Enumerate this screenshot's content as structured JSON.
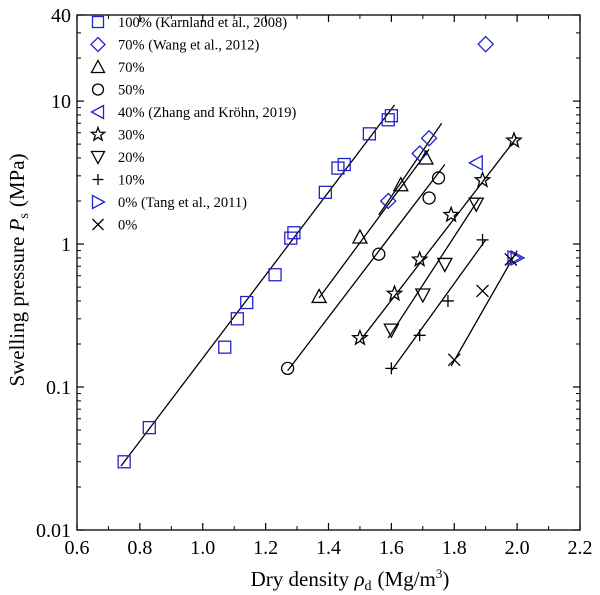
{
  "chart_data": {
    "type": "scatter",
    "xlabel_main": "Dry density ",
    "xlabel_symbol": "ρ",
    "xlabel_sub": "d",
    "xlabel_units": "(Mg/m",
    "xlabel_units_sup": "3",
    "xlabel_units_close": ")",
    "ylabel_main": "Swelling pressure ",
    "ylabel_symbol": "P",
    "ylabel_sub": "s",
    "ylabel_units": "(MPa)",
    "xlim": [
      0.6,
      2.2
    ],
    "ylim": [
      0.01,
      40
    ],
    "yscale": "log",
    "xticks": [
      0.6,
      0.8,
      1.0,
      1.2,
      1.4,
      1.6,
      1.8,
      2.0,
      2.2
    ],
    "xtick_labels": [
      "0.6",
      "0.8",
      "1.0",
      "1.2",
      "1.4",
      "1.6",
      "1.8",
      "2.0",
      "2.2"
    ],
    "yticks": [
      0.01,
      0.1,
      1,
      10,
      40
    ],
    "ytick_labels": [
      "0.01",
      "0.1",
      "1",
      "10",
      "40"
    ],
    "legend_position": "top-left",
    "series": [
      {
        "name": "100% (Karnland et al., 2008)",
        "marker": "square",
        "color": "#2222cc",
        "points": [
          [
            0.75,
            0.03
          ],
          [
            0.83,
            0.052
          ],
          [
            1.07,
            0.19
          ],
          [
            1.11,
            0.3
          ],
          [
            1.14,
            0.39
          ],
          [
            1.23,
            0.61
          ],
          [
            1.28,
            1.1
          ],
          [
            1.29,
            1.2
          ],
          [
            1.39,
            2.3
          ],
          [
            1.43,
            3.4
          ],
          [
            1.45,
            3.6
          ],
          [
            1.53,
            5.9
          ],
          [
            1.59,
            7.4
          ],
          [
            1.6,
            7.9
          ]
        ],
        "fit": [
          [
            0.74,
            0.028
          ],
          [
            1.61,
            9.4
          ]
        ]
      },
      {
        "name": "70% (Wang et al., 2012)",
        "marker": "diamond",
        "color": "#2222cc",
        "points": [
          [
            1.59,
            2.0
          ],
          [
            1.69,
            4.3
          ],
          [
            1.72,
            5.5
          ],
          [
            1.9,
            25.0
          ]
        ],
        "fit": [
          [
            1.56,
            1.6
          ],
          [
            1.76,
            7.0
          ]
        ]
      },
      {
        "name": "70%",
        "marker": "triangle-up",
        "color": "#000000",
        "points": [
          [
            1.37,
            0.43
          ],
          [
            1.5,
            1.12
          ],
          [
            1.63,
            2.6
          ],
          [
            1.71,
            4.0
          ]
        ],
        "fit": [
          [
            1.37,
            0.42
          ],
          [
            1.72,
            4.6
          ]
        ]
      },
      {
        "name": "50%",
        "marker": "circle",
        "color": "#000000",
        "points": [
          [
            1.27,
            0.135
          ],
          [
            1.56,
            0.85
          ],
          [
            1.72,
            2.1
          ],
          [
            1.75,
            2.9
          ]
        ],
        "fit": [
          [
            1.27,
            0.13
          ],
          [
            1.77,
            3.6
          ]
        ]
      },
      {
        "name": "40% (Zhang and Kröhn, 2019)",
        "marker": "triangle-left",
        "color": "#2222cc",
        "points": [
          [
            1.87,
            3.7
          ]
        ],
        "fit": []
      },
      {
        "name": "30%",
        "marker": "star",
        "color": "#000000",
        "points": [
          [
            1.5,
            0.22
          ],
          [
            1.61,
            0.45
          ],
          [
            1.69,
            0.78
          ],
          [
            1.79,
            1.6
          ],
          [
            1.89,
            2.8
          ],
          [
            1.99,
            5.3
          ]
        ],
        "fit": [
          [
            1.5,
            0.21
          ],
          [
            2.0,
            5.6
          ]
        ]
      },
      {
        "name": "20%",
        "marker": "triangle-down",
        "color": "#000000",
        "points": [
          [
            1.6,
            0.25
          ],
          [
            1.7,
            0.44
          ],
          [
            1.77,
            0.72
          ],
          [
            1.87,
            1.9
          ]
        ],
        "fit": [
          [
            1.59,
            0.22
          ],
          [
            1.88,
            2.1
          ]
        ]
      },
      {
        "name": "10%",
        "marker": "plus",
        "color": "#000000",
        "points": [
          [
            1.6,
            0.135
          ],
          [
            1.69,
            0.23
          ],
          [
            1.78,
            0.4
          ],
          [
            1.89,
            1.07
          ]
        ],
        "fit": [
          [
            1.6,
            0.13
          ],
          [
            1.9,
            1.07
          ]
        ]
      },
      {
        "name": "0% (Tang et al., 2011)",
        "marker": "triangle-right",
        "color": "#2222cc",
        "points": [
          [
            1.99,
            0.8
          ],
          [
            2.0,
            0.8
          ]
        ],
        "fit": []
      },
      {
        "name": "0%",
        "marker": "x",
        "color": "#000000",
        "points": [
          [
            1.8,
            0.155
          ],
          [
            1.89,
            0.47
          ],
          [
            1.98,
            0.78
          ]
        ],
        "fit": [
          [
            1.79,
            0.14
          ],
          [
            2.0,
            0.9
          ]
        ]
      }
    ]
  }
}
